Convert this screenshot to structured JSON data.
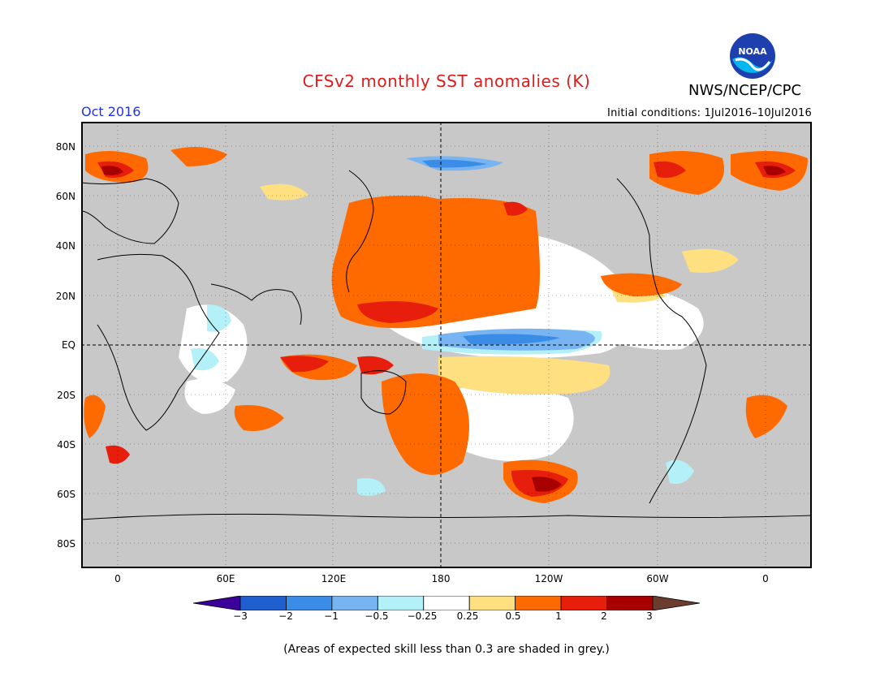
{
  "header": {
    "title": "CFSv2 monthly SST anomalies (K)",
    "organization": "NWS/NCEP/CPC",
    "logo_text": "NOAA",
    "valid_month": "Oct 2016",
    "initial_conditions": "Initial conditions: 1Jul2016–10Jul2016"
  },
  "map": {
    "projection": "equirectangular (Pacific-centered)",
    "land_color": "#c8c8c8",
    "missing_color": "#ffffff",
    "y_ticks": [
      "80N",
      "60N",
      "40N",
      "20N",
      "EQ",
      "20S",
      "40S",
      "60S",
      "80S"
    ],
    "x_ticks": [
      "0",
      "60E",
      "120E",
      "180",
      "120W",
      "60W",
      "0"
    ]
  },
  "colorbar": {
    "labels": [
      "−3",
      "−2",
      "−1",
      "−0.5",
      "−0.25",
      "0.25",
      "0.5",
      "1",
      "2",
      "3"
    ],
    "colors": [
      "#3b0099",
      "#1f5fd0",
      "#3b8ce6",
      "#78b4f2",
      "#b4f0f8",
      "#ffffff",
      "#ffe081",
      "#ff6a00",
      "#e81e0c",
      "#a80000",
      "#6b3d2e"
    ]
  },
  "footer": {
    "note": "(Areas of expected skill less than 0.3 are shaded in grey.)"
  }
}
